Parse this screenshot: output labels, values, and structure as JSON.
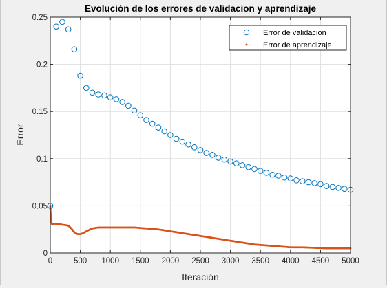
{
  "chart_data": {
    "type": "scatter",
    "title": "Evolución de los errores de validacion y aprendizaje",
    "xlabel": "Iteración",
    "ylabel": "Error",
    "xlim": [
      0,
      5000
    ],
    "ylim": [
      0,
      0.25
    ],
    "xticks": [
      0,
      500,
      1000,
      1500,
      2000,
      2500,
      3000,
      3500,
      4000,
      4500,
      5000
    ],
    "yticks": [
      0,
      0.05,
      0.1,
      0.15,
      0.2,
      0.25
    ],
    "xtick_labels": [
      "0",
      "500",
      "1000",
      "1500",
      "2000",
      "2500",
      "3000",
      "3500",
      "4000",
      "4500",
      "5000"
    ],
    "ytick_labels": [
      "0",
      "0.05",
      "0.1",
      "0.15",
      "0.2",
      "0.25"
    ],
    "grid": true,
    "legend_position": "top-right",
    "series": [
      {
        "name": "Error de validacion",
        "marker": "circle-open",
        "color": "#0072BD",
        "x": [
          0,
          100,
          200,
          300,
          400,
          500,
          600,
          700,
          800,
          900,
          1000,
          1100,
          1200,
          1300,
          1400,
          1500,
          1600,
          1700,
          1800,
          1900,
          2000,
          2100,
          2200,
          2300,
          2400,
          2500,
          2600,
          2700,
          2800,
          2900,
          3000,
          3100,
          3200,
          3300,
          3400,
          3500,
          3600,
          3700,
          3800,
          3900,
          4000,
          4100,
          4200,
          4300,
          4400,
          4500,
          4600,
          4700,
          4800,
          4900,
          5000
        ],
        "y": [
          0.05,
          0.24,
          0.245,
          0.237,
          0.216,
          0.188,
          0.175,
          0.17,
          0.168,
          0.167,
          0.165,
          0.163,
          0.16,
          0.156,
          0.151,
          0.146,
          0.141,
          0.137,
          0.133,
          0.129,
          0.125,
          0.121,
          0.118,
          0.115,
          0.112,
          0.109,
          0.106,
          0.104,
          0.101,
          0.099,
          0.097,
          0.095,
          0.093,
          0.091,
          0.089,
          0.087,
          0.085,
          0.083,
          0.082,
          0.08,
          0.079,
          0.077,
          0.076,
          0.075,
          0.074,
          0.073,
          0.071,
          0.07,
          0.069,
          0.068,
          0.067
        ]
      },
      {
        "name": "Error de aprendizaje",
        "marker": "point",
        "color": "#D95319",
        "x": [
          0,
          10,
          30,
          50,
          100,
          200,
          300,
          350,
          400,
          450,
          500,
          550,
          600,
          700,
          800,
          900,
          1000,
          1200,
          1400,
          1600,
          1800,
          2000,
          2200,
          2400,
          2600,
          2800,
          3000,
          3200,
          3400,
          3600,
          3800,
          4000,
          4200,
          4400,
          4600,
          4800,
          5000
        ],
        "y": [
          0.05,
          0.035,
          0.03,
          0.031,
          0.031,
          0.03,
          0.029,
          0.026,
          0.022,
          0.02,
          0.02,
          0.021,
          0.023,
          0.026,
          0.027,
          0.027,
          0.027,
          0.027,
          0.027,
          0.026,
          0.025,
          0.023,
          0.021,
          0.019,
          0.017,
          0.015,
          0.013,
          0.011,
          0.009,
          0.008,
          0.007,
          0.006,
          0.006,
          0.0055,
          0.005,
          0.005,
          0.005
        ]
      }
    ]
  }
}
